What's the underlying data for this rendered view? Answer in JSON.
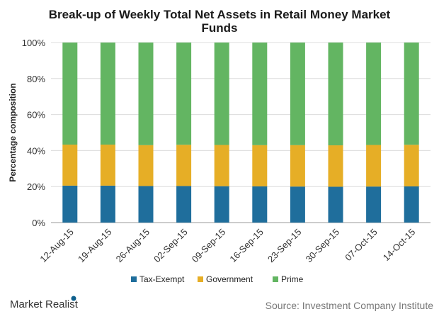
{
  "chart_data": {
    "type": "bar",
    "stacked": true,
    "title": "Break-up of Weekly Total Net Assets in Retail Money Market Funds",
    "ylabel": "Percentage composition",
    "xlabel": "",
    "ylim": [
      0,
      100
    ],
    "yticks": [
      "0%",
      "20%",
      "40%",
      "60%",
      "80%",
      "100%"
    ],
    "categories": [
      "12-Aug-15",
      "19-Aug-15",
      "26-Aug-15",
      "02-Sep-15",
      "09-Sep-15",
      "16-Sep-15",
      "23-Sep-15",
      "30-Sep-15",
      "07-Oct-15",
      "14-Oct-15"
    ],
    "series": [
      {
        "name": "Tax-Exempt",
        "color": "#1f6e9c",
        "values": [
          20.5,
          20.5,
          20.3,
          20.3,
          20.2,
          20.1,
          20.0,
          19.9,
          20.0,
          20.1
        ]
      },
      {
        "name": "Government",
        "color": "#e6ae26",
        "values": [
          22.8,
          22.8,
          22.7,
          22.9,
          22.9,
          22.9,
          23.0,
          23.0,
          23.1,
          23.1
        ]
      },
      {
        "name": "Prime",
        "color": "#63b562",
        "values": [
          56.7,
          56.7,
          57.0,
          56.8,
          56.9,
          57.0,
          57.0,
          57.1,
          56.9,
          56.8
        ]
      }
    ],
    "grid": true,
    "legend": "bottom"
  },
  "footer": {
    "logo": "Market Realist",
    "source": "Source: Investment Company Institute"
  }
}
